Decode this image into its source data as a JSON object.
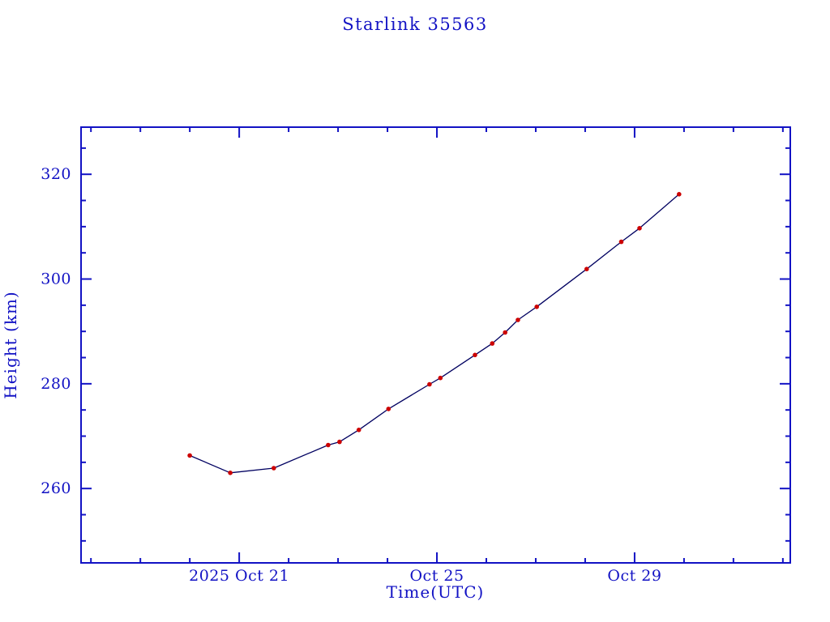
{
  "title": "Starlink 35563",
  "colors": {
    "background": "#ffffff",
    "axis": "#1212c4",
    "text": "#1212c4",
    "line": "#000060",
    "marker": "#cc0000"
  },
  "axes": {
    "x": {
      "label": "Time(UTC)",
      "ticks": [
        {
          "pos": 0,
          "label": "2025 Oct 21"
        },
        {
          "pos": 4,
          "label": "Oct 25"
        },
        {
          "pos": 8,
          "label": "Oct 29"
        }
      ]
    },
    "y": {
      "label": "Height (km)",
      "ticks": [
        {
          "pos": 260,
          "label": "260"
        },
        {
          "pos": 280,
          "label": "280"
        },
        {
          "pos": 300,
          "label": "300"
        },
        {
          "pos": 320,
          "label": "320"
        }
      ]
    }
  },
  "chart_data": {
    "type": "line",
    "title": "Starlink 35563",
    "xlabel": "Time(UTC)",
    "ylabel": "Height (km)",
    "x_unit": "days relative to 2025 Oct 21 00:00 UTC",
    "x_domain": [
      -3.2,
      11.15
    ],
    "y_domain": [
      245.8,
      329.0
    ],
    "x_minor_step": 1,
    "y_minor_step": 5,
    "grid": false,
    "legend": "none",
    "marker": "dot",
    "points": [
      {
        "x": -1.0,
        "y": 266.3
      },
      {
        "x": -0.18,
        "y": 263.0
      },
      {
        "x": 0.7,
        "y": 263.9
      },
      {
        "x": 1.8,
        "y": 268.3
      },
      {
        "x": 2.03,
        "y": 268.9
      },
      {
        "x": 2.42,
        "y": 271.2
      },
      {
        "x": 3.02,
        "y": 275.2
      },
      {
        "x": 3.85,
        "y": 279.9
      },
      {
        "x": 4.07,
        "y": 281.1
      },
      {
        "x": 4.77,
        "y": 285.5
      },
      {
        "x": 5.12,
        "y": 287.7
      },
      {
        "x": 5.38,
        "y": 289.8
      },
      {
        "x": 5.64,
        "y": 292.2
      },
      {
        "x": 6.02,
        "y": 294.7
      },
      {
        "x": 7.03,
        "y": 301.9
      },
      {
        "x": 7.73,
        "y": 307.1
      },
      {
        "x": 8.1,
        "y": 309.7
      },
      {
        "x": 8.9,
        "y": 316.2
      }
    ]
  }
}
